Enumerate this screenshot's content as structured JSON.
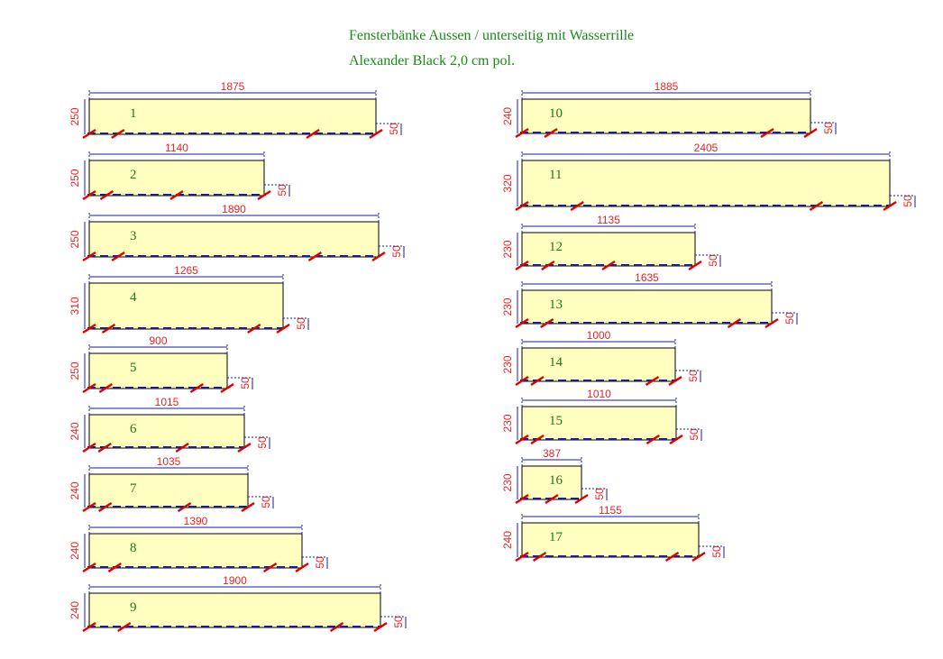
{
  "header": {
    "title_line1": "Fensterbänke Aussen / unterseitig mit Wasserrille",
    "title_line2": "Alexander Black 2,0 cm pol."
  },
  "colors": {
    "slab_fill": "#ffffc0",
    "slab_stroke": "#000000",
    "dimension": "#ee2222",
    "groove": "#1a1aa0",
    "title": "#1a8a1a",
    "cut_mark": "#e00000"
  },
  "groove_label": "50",
  "panels": [
    {
      "id": "1",
      "length": "1875",
      "depth": "250"
    },
    {
      "id": "2",
      "length": "1140",
      "depth": "250"
    },
    {
      "id": "3",
      "length": "1890",
      "depth": "250"
    },
    {
      "id": "4",
      "length": "1265",
      "depth": "310"
    },
    {
      "id": "5",
      "length": "900",
      "depth": "250"
    },
    {
      "id": "6",
      "length": "1015",
      "depth": "240"
    },
    {
      "id": "7",
      "length": "1035",
      "depth": "240"
    },
    {
      "id": "8",
      "length": "1390",
      "depth": "240"
    },
    {
      "id": "9",
      "length": "1900",
      "depth": "240"
    },
    {
      "id": "10",
      "length": "1885",
      "depth": "240"
    },
    {
      "id": "11",
      "length": "2405",
      "depth": "320"
    },
    {
      "id": "12",
      "length": "1135",
      "depth": "230"
    },
    {
      "id": "13",
      "length": "1635",
      "depth": "230"
    },
    {
      "id": "14",
      "length": "1000",
      "depth": "230"
    },
    {
      "id": "15",
      "length": "1010",
      "depth": "230"
    },
    {
      "id": "16",
      "length": "387",
      "depth": "230"
    },
    {
      "id": "17",
      "length": "1155",
      "depth": "240"
    }
  ]
}
